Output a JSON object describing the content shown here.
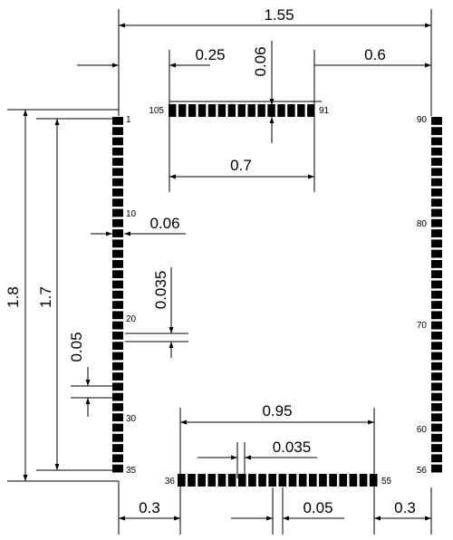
{
  "dimensions": {
    "total_width": "1.55",
    "left_offset_top": "0.25",
    "pad_length_top": "0.06",
    "right_offset_top": "0.6",
    "top_row_span": "0.7",
    "pad_width": "0.06",
    "pad_gap": "0.035",
    "total_height": "1.8",
    "left_column_span": "1.7",
    "pad_pitch_left": "0.05",
    "bottom_row_span": "0.95",
    "pad_gap_bottom": "0.035",
    "left_offset_bottom": "0.3",
    "pad_pitch_bottom": "0.05",
    "right_offset_bottom": "0.3"
  },
  "pin_labels": {
    "p1": "1",
    "p10": "10",
    "p20": "20",
    "p30": "30",
    "p35": "35",
    "p36": "36",
    "p55": "55",
    "p56": "56",
    "p60": "60",
    "p70": "70",
    "p80": "80",
    "p90": "90",
    "p91": "91",
    "p105": "105"
  },
  "pin_counts": {
    "left_column": 35,
    "bottom_row": 20,
    "right_column": 35,
    "top_row": 15
  }
}
